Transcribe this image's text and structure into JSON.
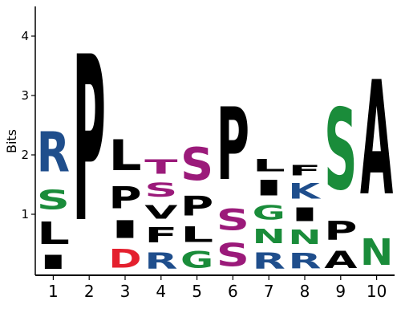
{
  "chart_data": {
    "type": "sequence-logo",
    "ylabel": "Bits",
    "ylim": [
      0,
      4.5
    ],
    "yticks": [
      1,
      2,
      3,
      4
    ],
    "positions": [
      "1",
      "2",
      "3",
      "4",
      "5",
      "6",
      "7",
      "8",
      "9",
      "10"
    ],
    "colors": {
      "P": "#000000",
      "L": "#000000",
      "I": "#000000",
      "V": "#000000",
      "F": "#000000",
      "A": "#000000",
      "R": "#1f4e8c",
      "K": "#1f4e8c",
      "S": "#1a8c3a",
      "G": "#1a8c3a",
      "N": "#1a8c3a",
      "T": "#1a8c3a",
      "D": "#e4202e"
    },
    "color_overrides": [
      {
        "position": 4,
        "letter": "T",
        "color": "#9b1a7a"
      },
      {
        "position": 4,
        "letter": "S",
        "color": "#9b1a7a"
      },
      {
        "position": 5,
        "letter": "S",
        "color": "#9b1a7a"
      },
      {
        "position": 6,
        "letter": "S",
        "color": "#9b1a7a"
      }
    ],
    "stacks": [
      [
        {
          "letter": "I",
          "height": 0.38
        },
        {
          "letter": "L",
          "height": 0.6
        },
        {
          "letter": "S",
          "height": 0.52
        },
        {
          "letter": "R",
          "height": 1.09
        }
      ],
      [
        {
          "letter": "P",
          "height": 4.48
        }
      ],
      [
        {
          "letter": "D",
          "height": 0.5
        },
        {
          "letter": "I",
          "height": 0.48
        },
        {
          "letter": "P",
          "height": 0.59
        },
        {
          "letter": "L",
          "height": 0.83
        }
      ],
      [
        {
          "letter": "R",
          "height": 0.44
        },
        {
          "letter": "F",
          "height": 0.41
        },
        {
          "letter": "V",
          "height": 0.37
        },
        {
          "letter": "S",
          "height": 0.38
        },
        {
          "letter": "T",
          "height": 0.39
        }
      ],
      [
        {
          "letter": "G",
          "height": 0.45
        },
        {
          "letter": "L",
          "height": 0.42
        },
        {
          "letter": "P",
          "height": 0.53
        },
        {
          "letter": "S",
          "height": 0.89
        }
      ],
      [
        {
          "letter": "S",
          "height": 0.62
        },
        {
          "letter": "S",
          "height": 0.57
        },
        {
          "letter": "P",
          "height": 1.96
        }
      ],
      [
        {
          "letter": "R",
          "height": 0.43
        },
        {
          "letter": "N",
          "height": 0.4
        },
        {
          "letter": "G",
          "height": 0.4
        },
        {
          "letter": "I",
          "height": 0.42
        },
        {
          "letter": "L",
          "height": 0.34
        }
      ],
      [
        {
          "letter": "R",
          "height": 0.42
        },
        {
          "letter": "N",
          "height": 0.39
        },
        {
          "letter": "I",
          "height": 0.37
        },
        {
          "letter": "K",
          "height": 0.42
        },
        {
          "letter": "F",
          "height": 0.28
        }
      ],
      [
        {
          "letter": "A",
          "height": 0.47
        },
        {
          "letter": "P",
          "height": 0.51
        },
        {
          "letter": "S",
          "height": 2.2
        }
      ],
      [
        {
          "letter": "N",
          "height": 0.72
        },
        {
          "letter": "A",
          "height": 3.09
        }
      ]
    ]
  }
}
